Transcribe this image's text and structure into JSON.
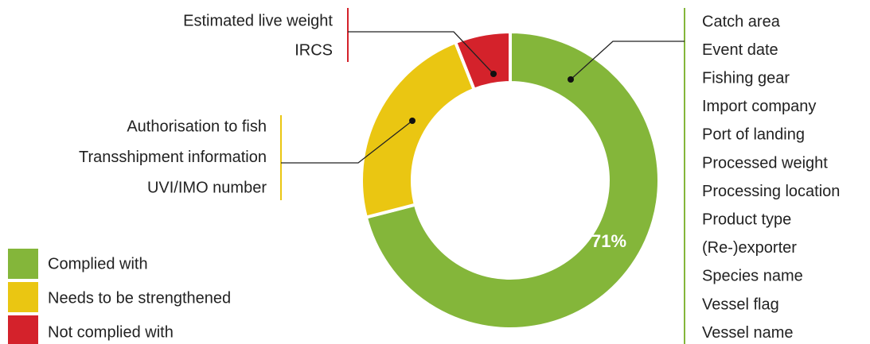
{
  "chart_data": {
    "type": "pie",
    "donut": true,
    "categories": [
      "Complied with",
      "Needs to be strengthened",
      "Not complied with"
    ],
    "values": [
      71,
      23,
      6
    ],
    "value_labels": [
      "71%",
      null,
      null
    ],
    "colors": [
      "#84b63a",
      "#eac612",
      "#d4222b"
    ],
    "items": [
      [
        "Catch area",
        "Event date",
        "Fishing gear",
        "Import company",
        "Port of landing",
        "Processed weight",
        "Processing location",
        "Product type",
        "(Re-)exporter",
        "Species name",
        "Vessel flag",
        "Vessel name"
      ],
      [
        "Authorisation to fish",
        "Transshipment information",
        "UVI/IMO number"
      ],
      [
        "Estimated live weight",
        "IRCS"
      ]
    ]
  }
}
